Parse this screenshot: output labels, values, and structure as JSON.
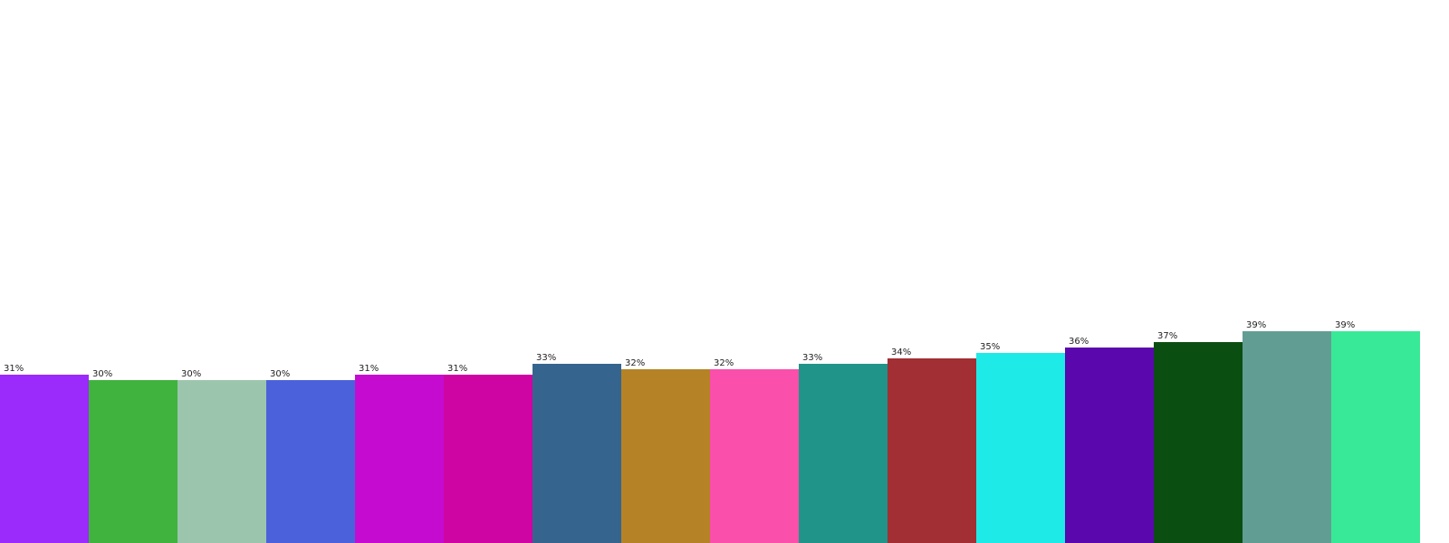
{
  "chart_data": {
    "type": "bar",
    "categories": [
      "",
      "",
      "",
      "",
      "",
      "",
      "",
      "",
      "",
      "",
      "",
      "",
      "",
      "",
      "",
      ""
    ],
    "values": [
      31,
      30,
      30,
      30,
      31,
      31,
      33,
      32,
      32,
      33,
      34,
      35,
      36,
      37,
      39,
      39
    ],
    "data_labels": [
      "31%",
      "30%",
      "30%",
      "30%",
      "31%",
      "31%",
      "33%",
      "32%",
      "32%",
      "33%",
      "34%",
      "35%",
      "36%",
      "37%",
      "39%",
      "39%"
    ],
    "colors": [
      "#9b2bfb",
      "#40b33e",
      "#9cc5ad",
      "#4b61db",
      "#c50bcf",
      "#cf05a3",
      "#35658f",
      "#b58326",
      "#fa4fab",
      "#21948a",
      "#a12f33",
      "#1eeae8",
      "#5a08ae",
      "#0b4e11",
      "#629d93",
      "#38ea97"
    ],
    "ylim": [
      0,
      100
    ],
    "title": "",
    "xlabel": "",
    "ylabel": "",
    "grid": false,
    "legend": "none"
  }
}
